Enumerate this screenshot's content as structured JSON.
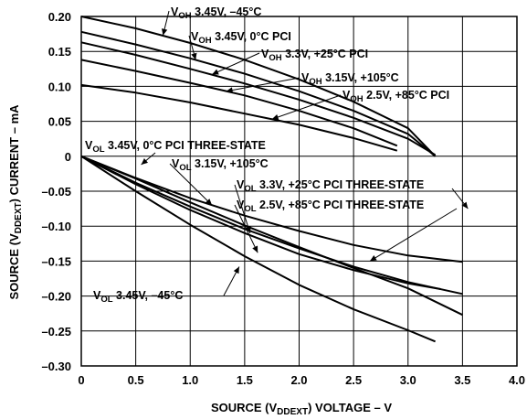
{
  "chart_data": {
    "type": "line",
    "title": "",
    "xlabel": {
      "pre": "SOURCE (V",
      "sub": "DDEXT",
      "post": ") VOLTAGE – V"
    },
    "ylabel": {
      "pre": "SOURCE (V",
      "sub": "DDEXT",
      "post": ") CURRENT – mA"
    },
    "xlim": [
      0,
      4.0
    ],
    "ylim": [
      -0.3,
      0.2
    ],
    "grid": true,
    "x_ticks": [
      "0",
      "0.5",
      "1.0",
      "1.5",
      "2.0",
      "2.5",
      "3.0",
      "3.5",
      "4.0"
    ],
    "y_ticks": [
      "0.20",
      "0.15",
      "0.10",
      "0.05",
      "0",
      "-0.05",
      "-0.10",
      "-0.15",
      "-0.20",
      "-0.25",
      "-0.30"
    ],
    "series": [
      {
        "label": {
          "main": "V",
          "sub": "OH",
          "rest": " 3.45V, –45°C"
        },
        "x": [
          0,
          0.5,
          1.0,
          1.5,
          2.0,
          2.5,
          3.0,
          3.25
        ],
        "y": [
          0.2,
          0.183,
          0.162,
          0.138,
          0.11,
          0.078,
          0.04,
          0.0
        ]
      },
      {
        "label": {
          "main": "V",
          "sub": "OH",
          "rest": " 3.45V, 0°C PCI"
        },
        "x": [
          0,
          0.5,
          1.0,
          1.5,
          2.0,
          2.5,
          3.0,
          3.25
        ],
        "y": [
          0.178,
          0.16,
          0.14,
          0.118,
          0.093,
          0.065,
          0.032,
          0.0
        ]
      },
      {
        "label": {
          "main": "V",
          "sub": "OH",
          "rest": " 3.3V, +25°C PCI"
        },
        "x": [
          0,
          0.5,
          1.0,
          1.5,
          2.0,
          2.5,
          3.0,
          3.25
        ],
        "y": [
          0.163,
          0.145,
          0.125,
          0.104,
          0.081,
          0.055,
          0.025,
          0.002
        ]
      },
      {
        "label": {
          "main": "V",
          "sub": "OH",
          "rest": " 3.15V, +105°C"
        },
        "x": [
          0,
          0.5,
          1.0,
          1.5,
          2.0,
          2.5,
          2.9
        ],
        "y": [
          0.138,
          0.122,
          0.105,
          0.087,
          0.065,
          0.04,
          0.015
        ]
      },
      {
        "label": {
          "main": "V",
          "sub": "OH",
          "rest": " 2.5V, +85°C PCI"
        },
        "x": [
          0,
          0.5,
          1.0,
          1.5,
          2.0,
          2.5,
          2.9
        ],
        "y": [
          0.102,
          0.091,
          0.077,
          0.061,
          0.045,
          0.026,
          0.008
        ]
      },
      {
        "label": {
          "main": "V",
          "sub": "OL",
          "rest": " 3.45V, 0°C PCI THREE-STATE"
        },
        "x": [
          0,
          0.5,
          1.0,
          1.5,
          2.0,
          2.5,
          3.0,
          3.5
        ],
        "y": [
          0.0,
          -0.038,
          -0.072,
          -0.104,
          -0.132,
          -0.158,
          -0.18,
          -0.197
        ]
      },
      {
        "label": {
          "main": "V",
          "sub": "OL",
          "rest": " 3.15V, +105°C"
        },
        "x": [
          0,
          0.5,
          1.0,
          1.5,
          2.0,
          2.5,
          3.0,
          3.5
        ],
        "y": [
          0.0,
          -0.031,
          -0.06,
          -0.085,
          -0.107,
          -0.127,
          -0.142,
          -0.151
        ]
      },
      {
        "label": {
          "main": "V",
          "sub": "OL",
          "rest": " 3.3V, +25°C PCI THREE-STATE"
        },
        "x": [
          0,
          0.5,
          1.0,
          1.5,
          2.0,
          2.5,
          3.0,
          3.3
        ],
        "y": [
          0.0,
          -0.04,
          -0.077,
          -0.11,
          -0.14,
          -0.163,
          -0.182,
          -0.19
        ]
      },
      {
        "label": {
          "main": "V",
          "sub": "OL",
          "rest": " 2.5V, +85°C PCI THREE-STATE"
        },
        "x": [
          0,
          0.5,
          1.0,
          1.5,
          2.0,
          2.5,
          3.0,
          3.5
        ],
        "y": [
          0.0,
          -0.032,
          -0.066,
          -0.099,
          -0.13,
          -0.16,
          -0.189,
          -0.227
        ]
      },
      {
        "label": {
          "main": "V",
          "sub": "OL",
          "rest": " 3.45V, –45°C"
        },
        "x": [
          0,
          0.5,
          1.0,
          1.5,
          2.0,
          2.5,
          3.0,
          3.25
        ],
        "y": [
          0.0,
          -0.05,
          -0.098,
          -0.143,
          -0.184,
          -0.219,
          -0.249,
          -0.265
        ]
      }
    ]
  }
}
